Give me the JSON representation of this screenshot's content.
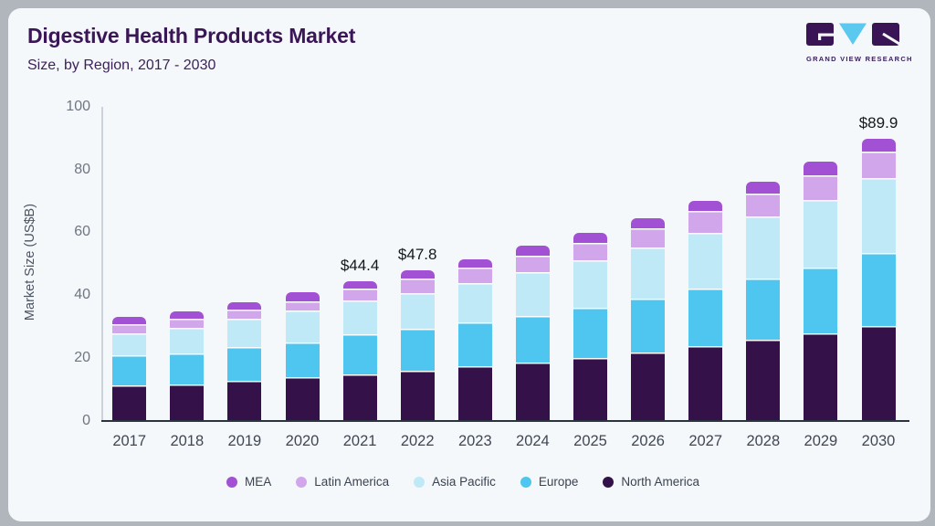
{
  "header": {
    "title": "Digestive Health Products Market",
    "subtitle": "Size, by Region, 2017 - 2030",
    "logo": {
      "brand": "GRAND VIEW RESEARCH"
    }
  },
  "chart_data": {
    "type": "bar",
    "stacked": true,
    "title": "Digestive Health Products Market Size, by Region, 2017 - 2030",
    "xlabel": "",
    "ylabel": "Market Size (US$B)",
    "ylim": [
      0,
      100
    ],
    "y_ticks": [
      "0",
      "20",
      "40",
      "60",
      "80",
      "100"
    ],
    "grid": false,
    "legend_position": "bottom",
    "categories": [
      "2017",
      "2018",
      "2019",
      "2020",
      "2021",
      "2022",
      "2023",
      "2024",
      "2025",
      "2026",
      "2027",
      "2028",
      "2029",
      "2030"
    ],
    "series": [
      {
        "name": "North America",
        "color": "#341148",
        "values": [
          11.3,
          11.6,
          12.8,
          13.8,
          14.8,
          15.9,
          17.3,
          18.4,
          19.9,
          21.6,
          23.6,
          25.7,
          27.8,
          30.2
        ]
      },
      {
        "name": "Europe",
        "color": "#4ec6f0",
        "values": [
          9.5,
          9.9,
          10.7,
          11.2,
          12.6,
          13.4,
          14.0,
          15.0,
          16.1,
          17.3,
          18.4,
          19.6,
          21.1,
          23.1
        ]
      },
      {
        "name": "Asia Pacific",
        "color": "#c0e9f8",
        "values": [
          7.0,
          8.1,
          9.0,
          10.0,
          11.0,
          11.2,
          12.6,
          13.8,
          15.0,
          16.2,
          17.9,
          19.7,
          21.4,
          24.0
        ]
      },
      {
        "name": "Latin America",
        "color": "#d1a6ea",
        "values": [
          2.9,
          2.9,
          2.9,
          3.1,
          3.7,
          4.9,
          4.8,
          5.4,
          5.7,
          6.1,
          6.8,
          7.3,
          7.9,
          8.4
        ]
      },
      {
        "name": "MEA",
        "color": "#a251d5",
        "values": [
          2.2,
          2.2,
          2.2,
          2.7,
          2.3,
          2.4,
          2.7,
          3.1,
          3.0,
          3.3,
          3.2,
          3.9,
          4.2,
          4.2
        ]
      }
    ],
    "totals": [
      32.9,
      34.7,
      37.6,
      40.8,
      44.4,
      47.8,
      51.4,
      55.7,
      59.7,
      64.5,
      69.9,
      76.2,
      82.4,
      89.9
    ],
    "annotations": [
      {
        "category": "2021",
        "label": "$44.4"
      },
      {
        "category": "2022",
        "label": "$47.8"
      },
      {
        "category": "2030",
        "label": "$89.9"
      }
    ]
  },
  "colors": {
    "frame_bg": "#b1b6bc",
    "card_bg": "#f5f8fb",
    "axis_line": "#2c3340",
    "y_tick_text": "#6d7683",
    "x_tick_text": "#3f4754",
    "title_text": "#3a1656",
    "subtitle_text": "#3e2158",
    "annotation_text": "#15171c",
    "segment_divider": "#fbfdff",
    "logo_block": "#3a1555",
    "logo_triangle": "#5ac8ef"
  }
}
